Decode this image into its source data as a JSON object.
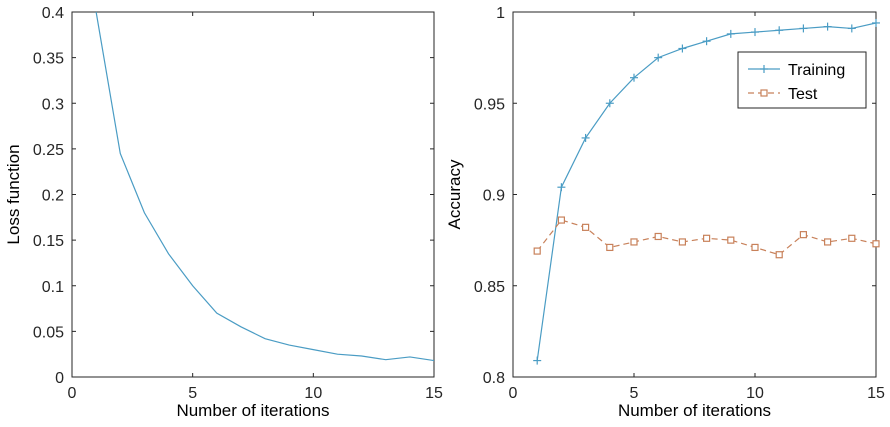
{
  "chart_data": [
    {
      "type": "line",
      "title": "",
      "xlabel": "Number of iterations",
      "ylabel": "Loss function",
      "xlim": [
        0,
        15
      ],
      "ylim": [
        0,
        0.4
      ],
      "xticks": [
        0,
        5,
        10,
        15
      ],
      "yticks": [
        0,
        0.05,
        0.1,
        0.15,
        0.2,
        0.25,
        0.3,
        0.35,
        0.4
      ],
      "ytick_labels": [
        "0",
        "0.05",
        "0.1",
        "0.15",
        "0.2",
        "0.25",
        "0.3",
        "0.35",
        "0.4"
      ],
      "grid": false,
      "series": [
        {
          "color": "#4a9cc4",
          "marker": "none",
          "dash": "solid",
          "x": [
            1,
            2,
            3,
            4,
            5,
            6,
            7,
            8,
            9,
            10,
            11,
            12,
            13,
            14,
            15
          ],
          "y": [
            0.4,
            0.245,
            0.18,
            0.135,
            0.1,
            0.07,
            0.055,
            0.042,
            0.035,
            0.03,
            0.025,
            0.023,
            0.019,
            0.022,
            0.018
          ]
        }
      ]
    },
    {
      "type": "line",
      "title": "",
      "xlabel": "Number of iterations",
      "ylabel": "Accuracy",
      "xlim": [
        0,
        15
      ],
      "ylim": [
        0.8,
        1
      ],
      "xticks": [
        0,
        5,
        10,
        15
      ],
      "yticks": [
        0.8,
        0.85,
        0.9,
        0.95,
        1
      ],
      "ytick_labels": [
        "0.8",
        "0.85",
        "0.9",
        "0.95",
        "1"
      ],
      "grid": false,
      "legend": "top-right",
      "series": [
        {
          "name": "Training",
          "color": "#4a9cc4",
          "marker": "plus",
          "dash": "solid",
          "x": [
            1,
            2,
            3,
            4,
            5,
            6,
            7,
            8,
            9,
            10,
            11,
            12,
            13,
            14,
            15
          ],
          "y": [
            0.809,
            0.904,
            0.931,
            0.95,
            0.964,
            0.975,
            0.98,
            0.984,
            0.988,
            0.989,
            0.99,
            0.991,
            0.992,
            0.991,
            0.994
          ]
        },
        {
          "name": "Test",
          "color": "#c8815a",
          "marker": "square",
          "dash": "dashed",
          "x": [
            1,
            2,
            3,
            4,
            5,
            6,
            7,
            8,
            9,
            10,
            11,
            12,
            13,
            14,
            15
          ],
          "y": [
            0.869,
            0.886,
            0.882,
            0.871,
            0.874,
            0.877,
            0.874,
            0.876,
            0.875,
            0.871,
            0.867,
            0.878,
            0.874,
            0.876,
            0.873
          ]
        }
      ]
    }
  ]
}
